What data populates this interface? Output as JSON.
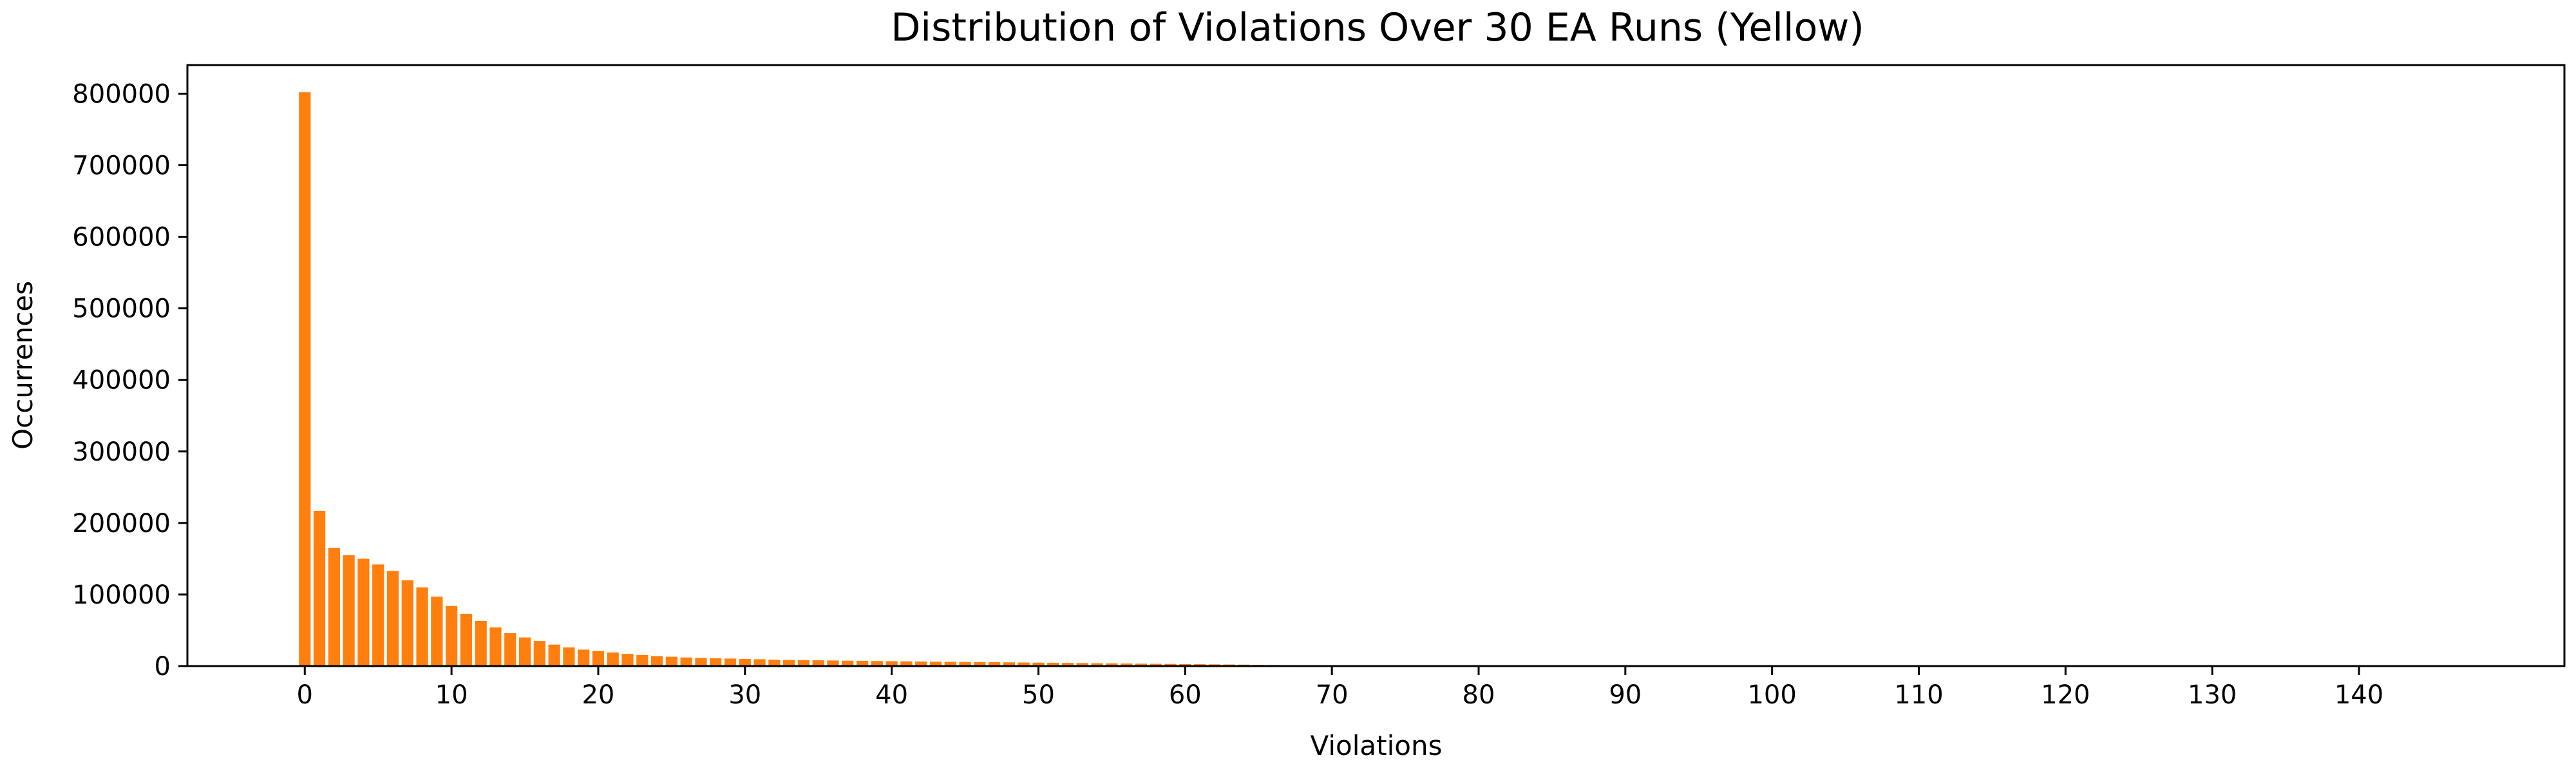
{
  "chart_data": {
    "type": "bar",
    "title": "Distribution of Violations Over 30 EA Runs (Yellow)",
    "xlabel": "Violations",
    "ylabel": "Occurrences",
    "bar_color": "#ff7f0e",
    "xlim": [
      -8,
      154
    ],
    "ylim": [
      0,
      840000
    ],
    "xticks": [
      0,
      10,
      20,
      30,
      40,
      50,
      60,
      70,
      80,
      90,
      100,
      110,
      120,
      130,
      140
    ],
    "yticks": [
      0,
      100000,
      200000,
      300000,
      400000,
      500000,
      600000,
      700000,
      800000
    ],
    "grid": false,
    "legend": "none",
    "x": [
      0,
      1,
      2,
      3,
      4,
      5,
      6,
      7,
      8,
      9,
      10,
      11,
      12,
      13,
      14,
      15,
      16,
      17,
      18,
      19,
      20,
      21,
      22,
      23,
      24,
      25,
      26,
      27,
      28,
      29,
      30,
      31,
      32,
      33,
      34,
      35,
      36,
      37,
      38,
      39,
      40,
      41,
      42,
      43,
      44,
      45,
      46,
      47,
      48,
      49,
      50,
      51,
      52,
      53,
      54,
      55,
      56,
      57,
      58,
      59,
      60,
      61,
      62,
      63,
      64,
      65,
      66,
      67,
      68,
      69,
      70,
      71,
      72,
      73,
      74
    ],
    "values": [
      802000,
      217000,
      165000,
      155000,
      150000,
      142000,
      133000,
      120000,
      110000,
      97000,
      84000,
      73000,
      63000,
      54000,
      46000,
      40000,
      35000,
      30000,
      26000,
      23000,
      21000,
      19000,
      17000,
      15500,
      14000,
      13000,
      12000,
      11500,
      11000,
      10500,
      10000,
      9500,
      9000,
      8700,
      8400,
      8100,
      7800,
      7500,
      7200,
      7000,
      6800,
      6600,
      6400,
      6200,
      6000,
      5800,
      5600,
      5400,
      5200,
      5000,
      4800,
      4600,
      4400,
      4200,
      4000,
      3800,
      3600,
      3400,
      3200,
      3000,
      2800,
      2600,
      2400,
      2200,
      2000,
      1800,
      1600,
      1400,
      1200,
      1000,
      800,
      600,
      400,
      300,
      200
    ]
  }
}
